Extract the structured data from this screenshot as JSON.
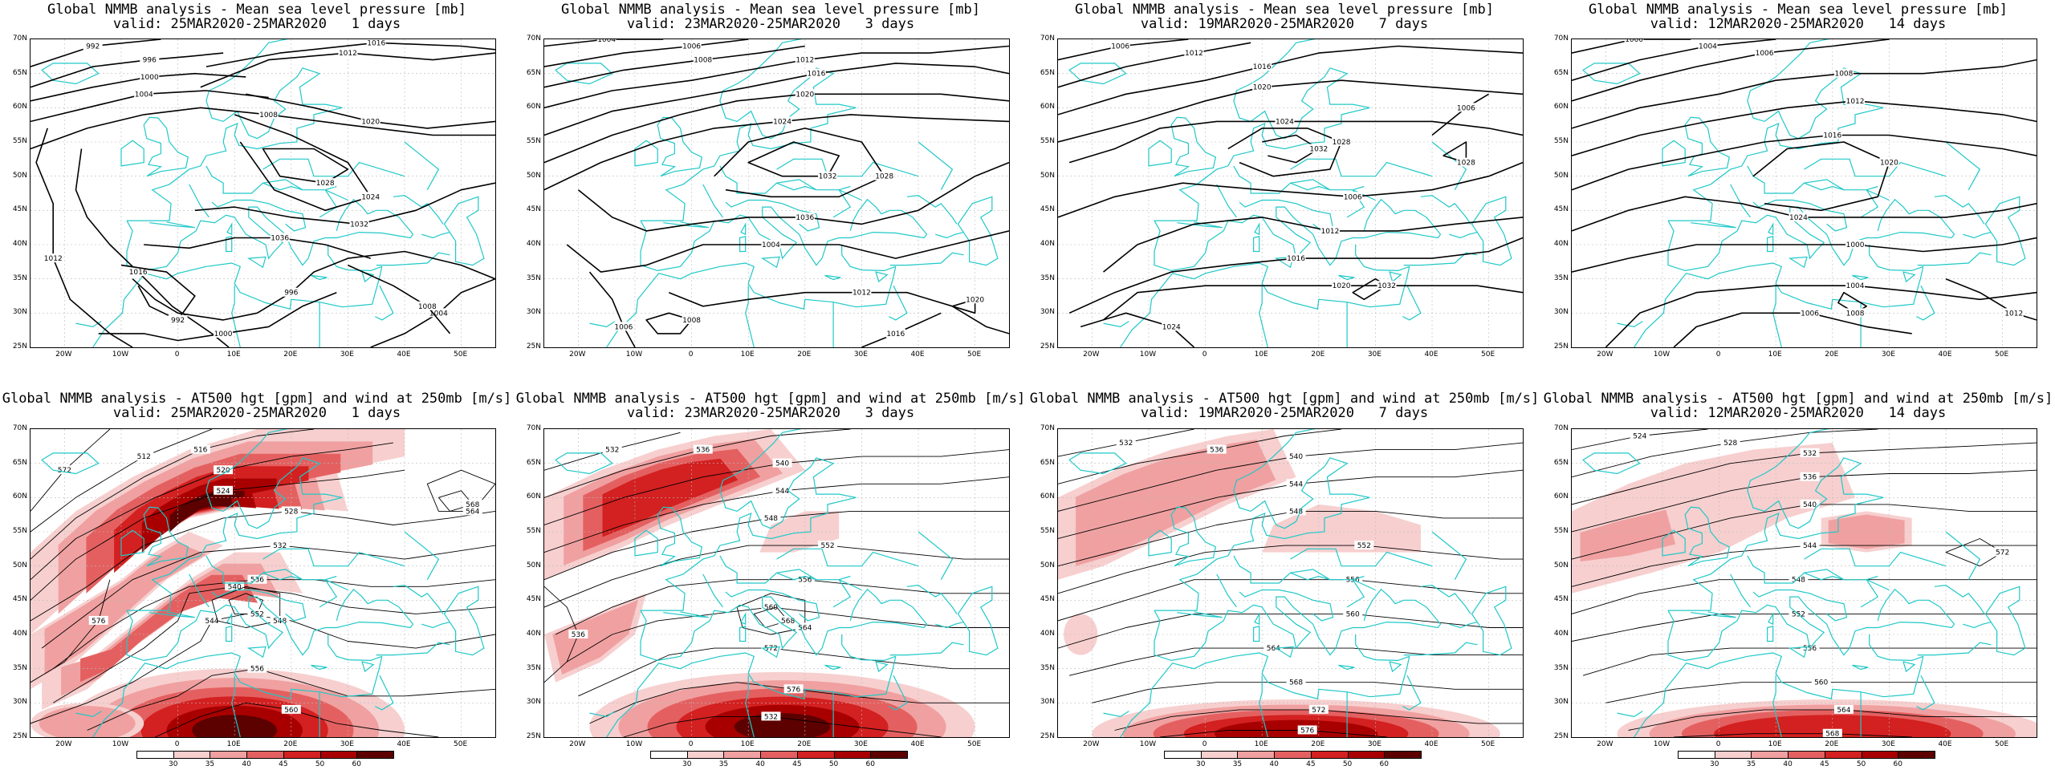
{
  "panels": [
    {
      "title": "Global NMMB analysis - Mean sea level pressure [mb]",
      "valid": "valid: 25MAR2020-25MAR2020   1 days",
      "kind": "mslp",
      "labels": [
        "992",
        "996",
        "1000",
        "1004",
        "1008",
        "1012",
        "1016",
        "1020",
        "1024",
        "1028",
        "1032",
        "1036"
      ]
    },
    {
      "title": "Global NMMB analysis - Mean sea level pressure [mb]",
      "valid": "valid: 23MAR2020-25MAR2020   3 days",
      "kind": "mslp",
      "labels": [
        "1004",
        "1006",
        "1008",
        "1012",
        "1016",
        "1020",
        "1024",
        "1028",
        "1032",
        "1036"
      ]
    },
    {
      "title": "Global NMMB analysis - Mean sea level pressure [mb]",
      "valid": "valid: 19MAR2020-25MAR2020   7 days",
      "kind": "mslp",
      "labels": [
        "1006",
        "1012",
        "1016",
        "1020",
        "1024",
        "1028",
        "1032"
      ]
    },
    {
      "title": "Global NMMB analysis - Mean sea level pressure [mb]",
      "valid": "valid: 12MAR2020-25MAR2020   14 days",
      "kind": "mslp",
      "labels": [
        "1000",
        "1004",
        "1006",
        "1008",
        "1012",
        "1016",
        "1020",
        "1024"
      ]
    },
    {
      "title": "Global NMMB analysis - AT500 hgt [gpm] and wind at 250mb [m/s]",
      "valid": "valid: 25MAR2020-25MAR2020   1 days",
      "kind": "z500",
      "labels": [
        "512",
        "516",
        "520",
        "524",
        "528",
        "532",
        "536",
        "540",
        "544",
        "548",
        "552",
        "556",
        "560",
        "564",
        "568",
        "572",
        "576"
      ]
    },
    {
      "title": "Global NMMB analysis - AT500 hgt [gpm] and wind at 250mb [m/s]",
      "valid": "valid: 23MAR2020-25MAR2020   3 days",
      "kind": "z500",
      "labels": [
        "532",
        "536",
        "540",
        "544",
        "548",
        "552",
        "556",
        "560",
        "564",
        "568",
        "572",
        "576"
      ]
    },
    {
      "title": "Global NMMB analysis - AT500 hgt [gpm] and wind at 250mb [m/s]",
      "valid": "valid: 19MAR2020-25MAR2020   7 days",
      "kind": "z500",
      "labels": [
        "532",
        "536",
        "540",
        "544",
        "548",
        "552",
        "556",
        "560",
        "564",
        "568",
        "572",
        "576"
      ]
    },
    {
      "title": "Global NMMB analysis - AT500 hgt [gpm] and wind at 250mb [m/s]",
      "valid": "valid: 12MAR2020-25MAR2020   14 days",
      "kind": "z500",
      "labels": [
        "524",
        "528",
        "532",
        "536",
        "540",
        "544",
        "548",
        "552",
        "556",
        "560",
        "564",
        "568",
        "572"
      ]
    }
  ],
  "latitudes": [
    "70N",
    "65N",
    "60N",
    "55N",
    "50N",
    "45N",
    "40N",
    "35N",
    "30N",
    "25N"
  ],
  "longitudes": [
    "20W",
    "10W",
    "0",
    "10E",
    "20E",
    "30E",
    "40E",
    "50E"
  ],
  "colorbar": {
    "labels": [
      "30",
      "35",
      "40",
      "45",
      "50",
      "60"
    ],
    "colors": [
      "#ffffff",
      "#f7cfcf",
      "#f0a0a0",
      "#e46060",
      "#d32020",
      "#a80000",
      "#5c0000"
    ]
  },
  "colors": {
    "coast": "#20c8c8",
    "contour": "#000000",
    "grid": "#bbbbbb"
  }
}
